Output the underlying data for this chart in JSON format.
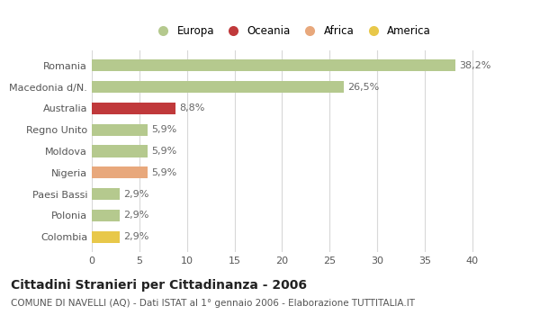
{
  "categories": [
    "Romania",
    "Macedonia d/N.",
    "Australia",
    "Regno Unito",
    "Moldova",
    "Nigeria",
    "Paesi Bassi",
    "Polonia",
    "Colombia"
  ],
  "values": [
    38.2,
    26.5,
    8.8,
    5.9,
    5.9,
    5.9,
    2.9,
    2.9,
    2.9
  ],
  "labels": [
    "38,2%",
    "26,5%",
    "8,8%",
    "5,9%",
    "5,9%",
    "5,9%",
    "2,9%",
    "2,9%",
    "2,9%"
  ],
  "colors": [
    "#b5c98e",
    "#b5c98e",
    "#c0393b",
    "#b5c98e",
    "#b5c98e",
    "#e8a87c",
    "#b5c98e",
    "#b5c98e",
    "#e8c84a"
  ],
  "legend": [
    {
      "label": "Europa",
      "color": "#b5c98e"
    },
    {
      "label": "Oceania",
      "color": "#c0393b"
    },
    {
      "label": "Africa",
      "color": "#e8a87c"
    },
    {
      "label": "America",
      "color": "#e8c84a"
    }
  ],
  "xlim": [
    0,
    42
  ],
  "xticks": [
    0,
    5,
    10,
    15,
    20,
    25,
    30,
    35,
    40
  ],
  "title": "Cittadini Stranieri per Cittadinanza - 2006",
  "subtitle": "COMUNE DI NAVELLI (AQ) - Dati ISTAT al 1° gennaio 2006 - Elaborazione TUTTITALIA.IT",
  "background_color": "#ffffff",
  "grid_color": "#d8d8d8",
  "bar_height": 0.55,
  "title_fontsize": 10,
  "subtitle_fontsize": 7.5,
  "tick_fontsize": 8,
  "label_fontsize": 8,
  "legend_fontsize": 8.5
}
